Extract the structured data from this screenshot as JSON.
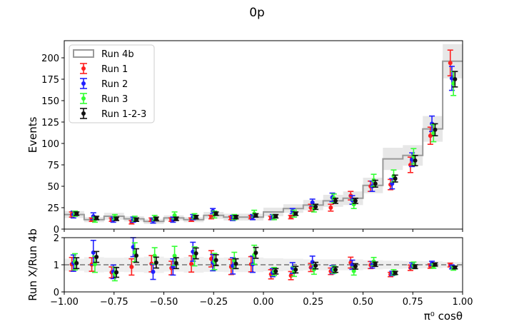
{
  "chart_data": [
    {
      "type": "histogram-with-errorbars",
      "title": "0p",
      "ylabel": "Events",
      "xlim": [
        -1.0,
        1.0
      ],
      "ylim": [
        0,
        220
      ],
      "xticks": [
        -1.0,
        -0.75,
        -0.5,
        -0.25,
        0.0,
        0.25,
        0.5,
        0.75,
        1.0
      ],
      "xtick_labels": [
        "−1.00",
        "−0.75",
        "−0.50",
        "−0.25",
        "0.00",
        "0.25",
        "0.50",
        "0.75",
        "1.00"
      ],
      "yticks": [
        0,
        25,
        50,
        75,
        100,
        125,
        150,
        175,
        200
      ],
      "legend_position": "top-left",
      "bin_edges": [
        -1.0,
        -0.9,
        -0.8,
        -0.7,
        -0.6,
        -0.5,
        -0.4,
        -0.3,
        -0.2,
        -0.1,
        0.0,
        0.1,
        0.2,
        0.3,
        0.4,
        0.5,
        0.6,
        0.7,
        0.8,
        0.9,
        1.0
      ],
      "reference": {
        "name": "Run 4b",
        "color": "#999999",
        "values": [
          17,
          11,
          15,
          12,
          9,
          13,
          11,
          16,
          14,
          14,
          20,
          24,
          28,
          33,
          36,
          51,
          82,
          86,
          117,
          196
        ],
        "band_halfwidth": [
          4,
          3,
          4,
          3,
          3,
          3,
          3,
          4,
          4,
          4,
          5,
          5,
          6,
          7,
          8,
          9,
          13,
          12,
          15,
          20
        ]
      },
      "series": [
        {
          "name": "Run 1",
          "color": "#ff2020",
          "values": [
            17,
            11,
            11,
            8,
            11,
            11,
            11,
            14,
            13,
            14,
            13,
            14,
            25,
            25,
            39,
            50,
            52,
            75,
            109,
            194
          ],
          "errors": [
            3,
            2,
            2,
            2,
            2,
            2,
            2,
            2,
            2,
            2,
            2,
            2,
            4,
            4,
            5,
            6,
            6,
            9,
            10,
            15
          ]
        },
        {
          "name": "Run 2",
          "color": "#2020ff",
          "values": [
            17,
            15,
            11,
            11,
            10,
            11,
            14,
            21,
            13,
            14,
            14,
            21,
            31,
            37,
            34,
            50,
            53,
            81,
            123,
            176
          ],
          "errors": [
            4,
            4,
            3,
            3,
            3,
            3,
            3,
            3,
            3,
            3,
            3,
            3,
            4,
            5,
            5,
            6,
            6,
            8,
            9,
            14
          ]
        },
        {
          "name": "Run 3",
          "color": "#33ff33",
          "values": [
            18,
            11,
            14,
            12,
            13,
            16,
            15,
            17,
            14,
            18,
            14,
            18,
            24,
            36,
            29,
            57,
            62,
            85,
            112,
            170
          ],
          "errors": [
            3,
            3,
            3,
            3,
            3,
            4,
            3,
            4,
            3,
            4,
            3,
            4,
            4,
            5,
            5,
            7,
            7,
            9,
            10,
            14
          ]
        },
        {
          "name": "Run 1-2-3",
          "color": "#111111",
          "values": [
            18,
            13,
            12,
            11,
            12,
            12,
            14,
            18,
            14,
            16,
            15,
            18,
            26,
            33,
            33,
            53,
            59,
            80,
            116,
            175
          ],
          "errors": [
            2,
            2,
            2,
            2,
            2,
            2,
            2,
            2,
            2,
            2,
            2,
            2,
            3,
            3,
            3,
            4,
            4,
            6,
            7,
            9
          ]
        }
      ]
    },
    {
      "type": "ratio-with-errorbars",
      "xlabel": "π⁰ cosθ",
      "ylabel": "Run X/Run 4b",
      "xlim": [
        -1.0,
        1.0
      ],
      "ylim": [
        0,
        2
      ],
      "yticks": [
        0,
        1,
        2
      ],
      "xticks": [
        -1.0,
        -0.75,
        -0.5,
        -0.25,
        0.0,
        0.25,
        0.5,
        0.75,
        1.0
      ],
      "xtick_labels": [
        "−1.00",
        "−0.75",
        "−0.50",
        "−0.25",
        "0.00",
        "0.25",
        "0.50",
        "0.75",
        "1.00"
      ],
      "reference_line": 1,
      "band_halfwidth": [
        0.22,
        0.28,
        0.26,
        0.27,
        0.3,
        0.25,
        0.29,
        0.26,
        0.27,
        0.27,
        0.24,
        0.22,
        0.2,
        0.2,
        0.2,
        0.17,
        0.15,
        0.14,
        0.13,
        0.1
      ],
      "series": [
        {
          "name": "Run 1",
          "color": "#ff2020",
          "values": [
            1.02,
            1.01,
            0.72,
            0.92,
            1.04,
            0.88,
            1.03,
            1.22,
            0.92,
            1.02,
            0.65,
            0.6,
            0.9,
            0.76,
            1.08,
            0.99,
            0.64,
            0.89,
            0.95,
            0.99
          ],
          "errors": [
            0.25,
            0.25,
            0.2,
            0.3,
            0.3,
            0.25,
            0.3,
            0.3,
            0.28,
            0.28,
            0.17,
            0.15,
            0.15,
            0.12,
            0.2,
            0.13,
            0.08,
            0.1,
            0.08,
            0.07
          ]
        },
        {
          "name": "Run 2",
          "color": "#2020ff",
          "values": [
            1.06,
            1.45,
            0.74,
            1.65,
            0.74,
            0.92,
            1.48,
            1.08,
            0.96,
            1.02,
            0.71,
            0.88,
            1.1,
            0.82,
            1.0,
            1.0,
            0.68,
            0.97,
            1.05,
            0.92
          ],
          "errors": [
            0.3,
            0.45,
            0.25,
            0.35,
            0.28,
            0.3,
            0.35,
            0.3,
            0.3,
            0.3,
            0.15,
            0.2,
            0.22,
            0.15,
            0.17,
            0.12,
            0.08,
            0.1,
            0.08,
            0.07
          ]
        },
        {
          "name": "Run 3",
          "color": "#33ff33",
          "values": [
            1.11,
            1.02,
            0.66,
            1.46,
            1.33,
            1.33,
            1.31,
            1.12,
            1.16,
            1.37,
            0.75,
            0.75,
            0.83,
            0.82,
            0.77,
            1.12,
            0.72,
            0.98,
            0.95,
            0.87
          ],
          "errors": [
            0.3,
            0.3,
            0.25,
            0.35,
            0.3,
            0.35,
            0.35,
            0.3,
            0.3,
            0.35,
            0.15,
            0.18,
            0.18,
            0.13,
            0.15,
            0.15,
            0.1,
            0.12,
            0.08,
            0.07
          ]
        },
        {
          "name": "Run 1-2-3",
          "color": "#111111",
          "values": [
            1.06,
            1.29,
            0.72,
            1.34,
            1.08,
            1.06,
            1.42,
            1.17,
            1.04,
            1.44,
            0.76,
            0.82,
            0.97,
            0.82,
            0.94,
            1.02,
            0.7,
            0.93,
            1.01,
            0.9
          ],
          "errors": [
            0.2,
            0.2,
            0.18,
            0.25,
            0.2,
            0.2,
            0.2,
            0.2,
            0.18,
            0.2,
            0.1,
            0.12,
            0.12,
            0.1,
            0.1,
            0.08,
            0.06,
            0.07,
            0.06,
            0.05
          ]
        }
      ]
    }
  ]
}
